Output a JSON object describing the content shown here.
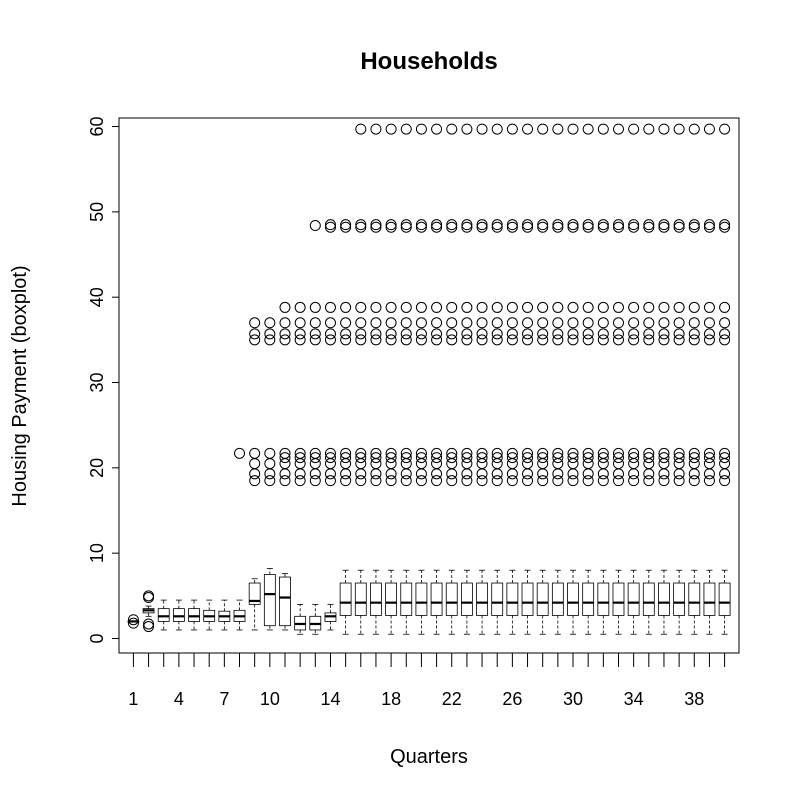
{
  "chart_data": {
    "type": "boxplot",
    "title": "Households",
    "xlabel": "Quarters",
    "ylabel": "Housing Payment (boxplot)",
    "xlim": [
      0.05,
      40.95
    ],
    "ylim": [
      -1.7,
      61.0
    ],
    "yticks": [
      0,
      10,
      20,
      30,
      40,
      50,
      60
    ],
    "xtick_labels": [
      "1",
      "4",
      "7",
      "10",
      "14",
      "18",
      "22",
      "26",
      "30",
      "34",
      "38"
    ],
    "xtick_positions": [
      1,
      4,
      7,
      10,
      14,
      18,
      22,
      26,
      30,
      34,
      38
    ],
    "boxes": [
      {
        "q": 1,
        "min": 2.0,
        "q1": 2.0,
        "median": 2.0,
        "q3": 2.0,
        "max": 2.0,
        "outliers": [
          1.8,
          2.2
        ]
      },
      {
        "q": 2,
        "min": 2.6,
        "q1": 3.0,
        "median": 3.3,
        "q3": 3.5,
        "max": 3.8,
        "outliers": [
          1.4,
          1.7,
          4.8,
          5.0
        ]
      },
      {
        "q": 3,
        "min": 1.0,
        "q1": 2.0,
        "median": 2.6,
        "q3": 3.5,
        "max": 4.5,
        "outliers": []
      },
      {
        "q": 4,
        "min": 1.0,
        "q1": 2.0,
        "median": 2.6,
        "q3": 3.5,
        "max": 4.5,
        "outliers": []
      },
      {
        "q": 5,
        "min": 1.0,
        "q1": 2.0,
        "median": 2.6,
        "q3": 3.5,
        "max": 4.5,
        "outliers": []
      },
      {
        "q": 6,
        "min": 1.0,
        "q1": 2.0,
        "median": 2.6,
        "q3": 3.3,
        "max": 4.5,
        "outliers": []
      },
      {
        "q": 7,
        "min": 1.0,
        "q1": 2.0,
        "median": 2.6,
        "q3": 3.2,
        "max": 4.5,
        "outliers": []
      },
      {
        "q": 8,
        "min": 1.0,
        "q1": 2.0,
        "median": 2.6,
        "q3": 3.3,
        "max": 4.5,
        "outliers": [
          21.7
        ]
      },
      {
        "q": 9,
        "min": 1.0,
        "q1": 4.0,
        "median": 4.4,
        "q3": 6.5,
        "max": 7.0,
        "outliers": [
          18.5,
          19.3,
          20.5,
          21.7,
          35.0,
          35.7,
          37.0
        ]
      },
      {
        "q": 10,
        "min": 1.0,
        "q1": 1.5,
        "median": 5.2,
        "q3": 7.5,
        "max": 8.2,
        "outliers": [
          18.5,
          19.3,
          20.5,
          21.7,
          35.0,
          35.7,
          37.0
        ]
      },
      {
        "q": 11,
        "min": 1.0,
        "q1": 1.5,
        "median": 4.8,
        "q3": 7.2,
        "max": 7.6,
        "outliers": [
          18.5,
          19.3,
          20.5,
          21.2,
          21.7,
          35.0,
          35.7,
          37.0,
          38.8
        ]
      },
      {
        "q": 12,
        "min": 0.5,
        "q1": 1.0,
        "median": 1.7,
        "q3": 2.6,
        "max": 4.0,
        "outliers": [
          18.5,
          19.3,
          20.5,
          21.2,
          21.7,
          35.0,
          35.7,
          37.0,
          38.8
        ]
      },
      {
        "q": 13,
        "min": 0.5,
        "q1": 1.0,
        "median": 1.7,
        "q3": 2.6,
        "max": 4.0,
        "outliers": [
          18.5,
          19.3,
          20.5,
          21.2,
          21.7,
          35.0,
          35.7,
          37.0,
          38.8,
          48.4
        ]
      },
      {
        "q": 14,
        "min": 1.0,
        "q1": 2.0,
        "median": 2.6,
        "q3": 3.0,
        "max": 4.0,
        "outliers": [
          18.5,
          19.3,
          20.5,
          21.2,
          21.7,
          35.0,
          35.7,
          37.0,
          38.8,
          48.2,
          48.5
        ]
      },
      {
        "q": 15,
        "min": 0.5,
        "q1": 2.7,
        "median": 4.2,
        "q3": 6.5,
        "max": 8.0,
        "outliers": [
          18.5,
          19.3,
          20.5,
          21.2,
          21.7,
          35.0,
          35.7,
          37.0,
          38.8,
          48.2,
          48.5
        ]
      },
      {
        "q": 16,
        "min": 0.5,
        "q1": 2.7,
        "median": 4.2,
        "q3": 6.5,
        "max": 8.0,
        "outliers": [
          18.5,
          19.3,
          20.5,
          21.2,
          21.7,
          35.0,
          35.7,
          37.0,
          38.8,
          48.2,
          48.5,
          59.7
        ]
      },
      {
        "q": 17,
        "min": 0.5,
        "q1": 2.7,
        "median": 4.2,
        "q3": 6.5,
        "max": 8.0,
        "outliers": [
          18.5,
          19.3,
          20.5,
          21.2,
          21.7,
          35.0,
          35.7,
          37.0,
          38.8,
          48.2,
          48.5,
          59.7
        ]
      },
      {
        "q": 18,
        "min": 0.5,
        "q1": 2.7,
        "median": 4.2,
        "q3": 6.5,
        "max": 8.0,
        "outliers": [
          18.5,
          19.3,
          20.5,
          21.2,
          21.7,
          35.0,
          35.7,
          37.0,
          38.8,
          48.2,
          48.5,
          59.7
        ]
      },
      {
        "q": 19,
        "min": 0.5,
        "q1": 2.7,
        "median": 4.2,
        "q3": 6.5,
        "max": 8.0,
        "outliers": [
          18.5,
          19.3,
          20.5,
          21.2,
          21.7,
          35.0,
          35.7,
          37.0,
          38.8,
          48.2,
          48.5,
          59.7
        ]
      },
      {
        "q": 20,
        "min": 0.5,
        "q1": 2.7,
        "median": 4.2,
        "q3": 6.5,
        "max": 8.0,
        "outliers": [
          18.5,
          19.3,
          20.5,
          21.2,
          21.7,
          35.0,
          35.7,
          37.0,
          38.8,
          48.2,
          48.5,
          59.7
        ]
      },
      {
        "q": 21,
        "min": 0.5,
        "q1": 2.7,
        "median": 4.2,
        "q3": 6.5,
        "max": 8.0,
        "outliers": [
          18.5,
          19.3,
          20.5,
          21.2,
          21.7,
          35.0,
          35.7,
          37.0,
          38.8,
          48.2,
          48.5,
          59.7
        ]
      },
      {
        "q": 22,
        "min": 0.5,
        "q1": 2.7,
        "median": 4.2,
        "q3": 6.5,
        "max": 8.0,
        "outliers": [
          18.5,
          19.3,
          20.5,
          21.2,
          21.7,
          35.0,
          35.7,
          37.0,
          38.8,
          48.2,
          48.5,
          59.7
        ]
      },
      {
        "q": 23,
        "min": 0.5,
        "q1": 2.7,
        "median": 4.2,
        "q3": 6.5,
        "max": 8.0,
        "outliers": [
          18.5,
          19.3,
          20.5,
          21.2,
          21.7,
          35.0,
          35.7,
          37.0,
          38.8,
          48.2,
          48.5,
          59.7
        ]
      },
      {
        "q": 24,
        "min": 0.5,
        "q1": 2.7,
        "median": 4.2,
        "q3": 6.5,
        "max": 8.0,
        "outliers": [
          18.5,
          19.3,
          20.5,
          21.2,
          21.7,
          35.0,
          35.7,
          37.0,
          38.8,
          48.2,
          48.5,
          59.7
        ]
      },
      {
        "q": 25,
        "min": 0.5,
        "q1": 2.7,
        "median": 4.2,
        "q3": 6.5,
        "max": 8.0,
        "outliers": [
          18.5,
          19.3,
          20.5,
          21.2,
          21.7,
          35.0,
          35.7,
          37.0,
          38.8,
          48.2,
          48.5,
          59.7
        ]
      },
      {
        "q": 26,
        "min": 0.5,
        "q1": 2.7,
        "median": 4.2,
        "q3": 6.5,
        "max": 8.0,
        "outliers": [
          18.5,
          19.3,
          20.5,
          21.2,
          21.7,
          35.0,
          35.7,
          37.0,
          38.8,
          48.2,
          48.5,
          59.7
        ]
      },
      {
        "q": 27,
        "min": 0.5,
        "q1": 2.7,
        "median": 4.2,
        "q3": 6.5,
        "max": 8.0,
        "outliers": [
          18.5,
          19.3,
          20.5,
          21.2,
          21.7,
          35.0,
          35.7,
          37.0,
          38.8,
          48.2,
          48.5,
          59.7
        ]
      },
      {
        "q": 28,
        "min": 0.5,
        "q1": 2.7,
        "median": 4.2,
        "q3": 6.5,
        "max": 8.0,
        "outliers": [
          18.5,
          19.3,
          20.5,
          21.2,
          21.7,
          35.0,
          35.7,
          37.0,
          38.8,
          48.2,
          48.5,
          59.7
        ]
      },
      {
        "q": 29,
        "min": 0.5,
        "q1": 2.7,
        "median": 4.2,
        "q3": 6.5,
        "max": 8.0,
        "outliers": [
          18.5,
          19.3,
          20.5,
          21.2,
          21.7,
          35.0,
          35.7,
          37.0,
          38.8,
          48.2,
          48.5,
          59.7
        ]
      },
      {
        "q": 30,
        "min": 0.5,
        "q1": 2.7,
        "median": 4.2,
        "q3": 6.5,
        "max": 8.0,
        "outliers": [
          18.5,
          19.3,
          20.5,
          21.2,
          21.7,
          35.0,
          35.7,
          37.0,
          38.8,
          48.2,
          48.5,
          59.7
        ]
      },
      {
        "q": 31,
        "min": 0.5,
        "q1": 2.7,
        "median": 4.2,
        "q3": 6.5,
        "max": 8.0,
        "outliers": [
          18.5,
          19.3,
          20.5,
          21.2,
          21.7,
          35.0,
          35.7,
          37.0,
          38.8,
          48.2,
          48.5,
          59.7
        ]
      },
      {
        "q": 32,
        "min": 0.5,
        "q1": 2.7,
        "median": 4.2,
        "q3": 6.5,
        "max": 8.0,
        "outliers": [
          18.5,
          19.3,
          20.5,
          21.2,
          21.7,
          35.0,
          35.7,
          37.0,
          38.8,
          48.2,
          48.5,
          59.7
        ]
      },
      {
        "q": 33,
        "min": 0.5,
        "q1": 2.7,
        "median": 4.2,
        "q3": 6.5,
        "max": 8.0,
        "outliers": [
          18.5,
          19.3,
          20.5,
          21.2,
          21.7,
          35.0,
          35.7,
          37.0,
          38.8,
          48.2,
          48.5,
          59.7
        ]
      },
      {
        "q": 34,
        "min": 0.5,
        "q1": 2.7,
        "median": 4.2,
        "q3": 6.5,
        "max": 8.0,
        "outliers": [
          18.5,
          19.3,
          20.5,
          21.2,
          21.7,
          35.0,
          35.7,
          37.0,
          38.8,
          48.2,
          48.5,
          59.7
        ]
      },
      {
        "q": 35,
        "min": 0.5,
        "q1": 2.7,
        "median": 4.2,
        "q3": 6.5,
        "max": 8.0,
        "outliers": [
          18.5,
          19.3,
          20.5,
          21.2,
          21.7,
          35.0,
          35.7,
          37.0,
          38.8,
          48.2,
          48.5,
          59.7
        ]
      },
      {
        "q": 36,
        "min": 0.5,
        "q1": 2.7,
        "median": 4.2,
        "q3": 6.5,
        "max": 8.0,
        "outliers": [
          18.5,
          19.3,
          20.5,
          21.2,
          21.7,
          35.0,
          35.7,
          37.0,
          38.8,
          48.2,
          48.5,
          59.7
        ]
      },
      {
        "q": 37,
        "min": 0.5,
        "q1": 2.7,
        "median": 4.2,
        "q3": 6.5,
        "max": 8.0,
        "outliers": [
          18.5,
          19.3,
          20.5,
          21.2,
          21.7,
          35.0,
          35.7,
          37.0,
          38.8,
          48.2,
          48.5,
          59.7
        ]
      },
      {
        "q": 38,
        "min": 0.5,
        "q1": 2.7,
        "median": 4.2,
        "q3": 6.5,
        "max": 8.0,
        "outliers": [
          18.5,
          19.3,
          20.5,
          21.2,
          21.7,
          35.0,
          35.7,
          37.0,
          38.8,
          48.2,
          48.5,
          59.7
        ]
      },
      {
        "q": 39,
        "min": 0.5,
        "q1": 2.7,
        "median": 4.2,
        "q3": 6.5,
        "max": 8.0,
        "outliers": [
          18.5,
          19.3,
          20.5,
          21.2,
          21.7,
          35.0,
          35.7,
          37.0,
          38.8,
          48.2,
          48.5,
          59.7
        ]
      },
      {
        "q": 40,
        "min": 0.5,
        "q1": 2.7,
        "median": 4.2,
        "q3": 6.5,
        "max": 8.0,
        "outliers": [
          18.5,
          19.3,
          20.5,
          21.2,
          21.7,
          35.0,
          35.7,
          37.0,
          38.8,
          48.2,
          48.5,
          59.7
        ]
      }
    ]
  }
}
